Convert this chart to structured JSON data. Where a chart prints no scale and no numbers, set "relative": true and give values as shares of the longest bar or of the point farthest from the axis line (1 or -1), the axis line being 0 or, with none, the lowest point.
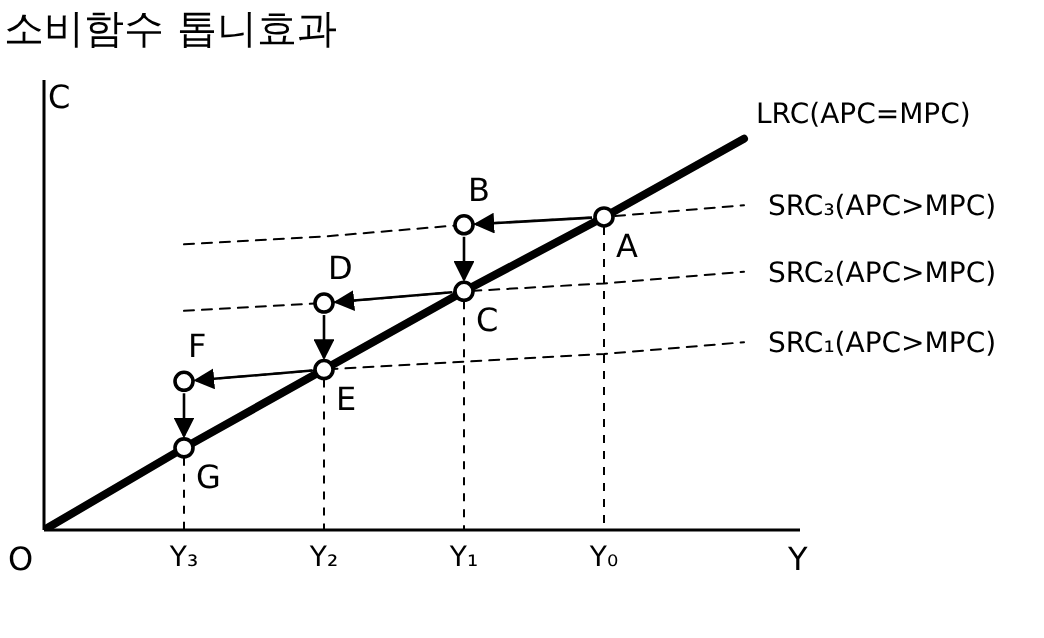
{
  "chart_data": {
    "type": "line",
    "title": "소비함수 톱니효과",
    "xlabel": "Y",
    "ylabel": "C",
    "annotations": [
      "O",
      {
        "text": "A",
        "x": "Y₀",
        "y": 0.8
      },
      {
        "text": "B",
        "x": "Y₁",
        "y": 0.78
      },
      {
        "text": "C",
        "x": "Y₁",
        "y": 0.61
      },
      {
        "text": "D",
        "x": "Y₂",
        "y": 0.58
      },
      {
        "text": "E",
        "x": "Y₂",
        "y": 0.41
      },
      {
        "text": "F",
        "x": "Y₃",
        "y": 0.38
      },
      {
        "text": "G",
        "x": "Y₃",
        "y": 0.21
      }
    ],
    "relative": true,
    "marker": "none",
    "categories": [
      null,
      "Y₃",
      "Y₂",
      "Y₁",
      "Y₀",
      null
    ],
    "series": [
      {
        "name": "LRC(APC=MPC)",
        "color": "#000000",
        "line_style": "solid",
        "values": [
          0,
          0.21,
          0.41,
          0.61,
          0.8,
          1
        ]
      },
      {
        "name": "SRC₃(APC>MPC)",
        "color": "#000000",
        "line_style": "dashed",
        "values": [
          null,
          0.73,
          0.75,
          0.78,
          0.8,
          0.83
        ]
      },
      {
        "name": "SRC₂(APC>MPC)",
        "color": "#000000",
        "line_style": "dashed",
        "values": [
          null,
          0.56,
          0.58,
          0.61,
          0.63,
          0.66
        ]
      },
      {
        "name": "SRC₁(APC>MPC)",
        "color": "#000000",
        "line_style": "dashed",
        "values": [
          null,
          0.38,
          0.41,
          0.43,
          0.45,
          0.48
        ]
      },
      {
        "type": "scatter",
        "color": "#000000",
        "marker": "circle",
        "x": [
          "Y₀",
          "Y₁",
          "Y₁",
          "Y₂",
          "Y₂",
          "Y₃",
          "Y₃"
        ],
        "values": [
          0.8,
          0.78,
          0.61,
          0.58,
          0.41,
          0.38,
          0.21
        ]
      }
    ]
  }
}
